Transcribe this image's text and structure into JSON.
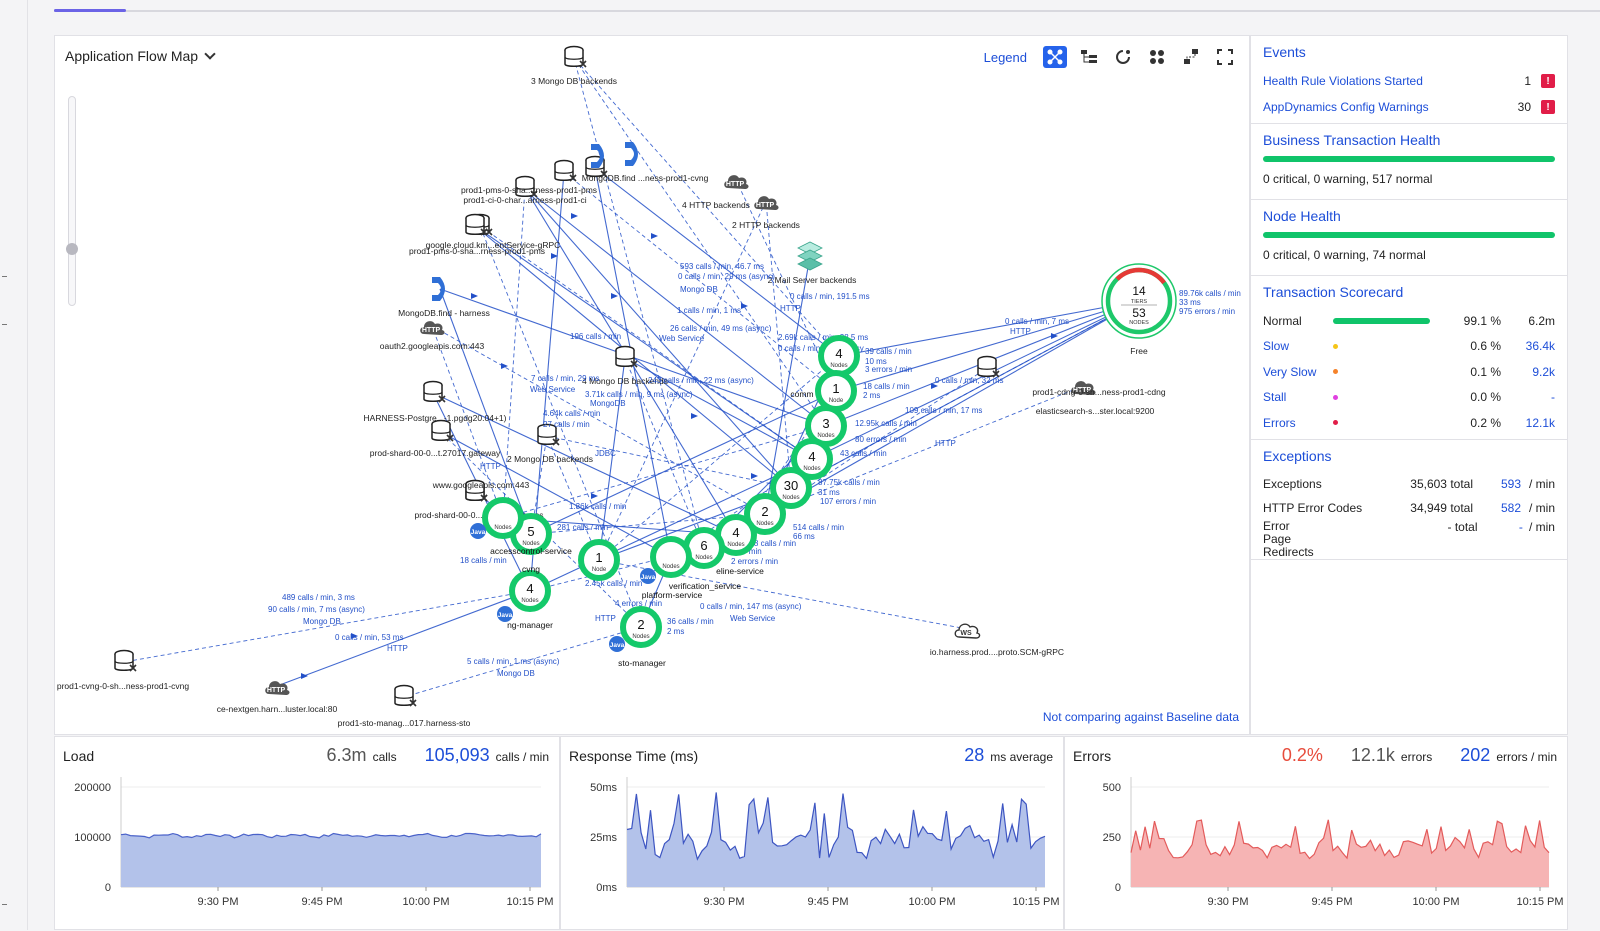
{
  "flow_map": {
    "title": "Application Flow Map",
    "legend_label": "Legend",
    "baseline_note": "Not comparing against Baseline data",
    "summary": {
      "tiers_count": "14",
      "tiers_label": "TIERS",
      "nodes_count": "53",
      "nodes_label": "NODES",
      "free_label": "Free"
    },
    "summary_stats": [
      "89.76k calls / min",
      "33 ms",
      "975 errors / min"
    ],
    "backend_labels": [
      "3 Mongo DB backends",
      "MongoDB.find ...ness-prod1-cvng",
      "prod1-pms-0-sha...rness-prod1-pms",
      "prod1-ci-0-char...arness-prod1-ci",
      "google.cloud.km...entService-gRPC",
      "prod1-pms-0-sha...rness-prod1-pms",
      "4 HTTP backends",
      "2 HTTP backends",
      "2 Mail Server backends",
      "MongoDB.find - harness",
      "oauth2.googleapis.com:443",
      "HARNESS-Postgre...-1.pgdg20.04+1)",
      "prod-shard-00-0...t.27017.gateway",
      "4 Mongo DB backends",
      "2 Mongo DB backends",
      "www.googleapis.com:443",
      "prod-shard-00-0...t.27017.harness",
      "prod1-cdng-0-sh...ness-prod1-cdng",
      "elasticsearch-s...ster.local:9200",
      "io.harness.prod....proto.SCM-gRPC",
      "prod1-cvng-0-sh...ness-prod1-cvng",
      "ce-nextgen.harn...luster.local:80",
      "prod1-sto-manag...017.harness-sto"
    ],
    "tier_nodes": [
      {
        "count": "4",
        "sub": "Nodes"
      },
      {
        "count": "1",
        "sub": "Node"
      },
      {
        "count": "3",
        "sub": "Nodes"
      },
      {
        "count": "4",
        "sub": "Nodes"
      },
      {
        "count": "30",
        "sub": "Nodes"
      },
      {
        "count": "2",
        "sub": "Nodes"
      },
      {
        "count": "4",
        "sub": "Nodes"
      },
      {
        "count": "6",
        "sub": "Nodes"
      },
      {
        "count": "",
        "sub": "Nodes"
      },
      {
        "count": "1",
        "sub": "Node"
      },
      {
        "count": "5",
        "sub": "Nodes"
      },
      {
        "count": "",
        "sub": "Nodes"
      },
      {
        "count": "4",
        "sub": "Nodes"
      },
      {
        "count": "2",
        "sub": "Nodes"
      }
    ],
    "tier_labels": [
      "accesscontrol-service",
      "cvng",
      "ng-manager",
      "platform-service",
      "verification_service",
      "eline-service",
      "sto-manager",
      "comm"
    ],
    "edge_labels": [
      "593 calls / min, 46.7 ms",
      "0 calls / min, 29 ms (async)",
      "Mongo DB",
      "0 calls / min, 191.5 ms",
      "HTTP",
      "1 calls / min, 1 ms",
      "26 calls / min, 49 ms (async)",
      "Web Service",
      "196 calls / min",
      "2.69k calls / min, 38.5 ms",
      "0 calls / min, 50 ms (asy",
      "7 calls / min, 29 ms",
      "243 calls / min, 22 ms (async)",
      "Web Service",
      "3.71k calls / min, 9 ms (async)",
      "MongoDB",
      "27 calls / min",
      "4.64k calls / min",
      "39 calls / min",
      "10 ms",
      "3 errors / min",
      "18 calls / min",
      "2 ms",
      "0 calls / min, 32 ms",
      "109 calls / min, 17 ms",
      "12.95k calls / min",
      "80 errors / min",
      "HTTP",
      "0 calls / min, 7 ms",
      "HTTP",
      "43 calls / min",
      "87.75k calls / min",
      "31 ms",
      "107 errors / min",
      "514 calls / min",
      "66 ms",
      "888 calls / min",
      "30 calls / min",
      "2 errors / min",
      "281 calls / min",
      "2.45k calls / min",
      "4 errors / min",
      "HTTP",
      "489 calls / min, 3 ms",
      "90 calls / min, 7 ms (async)",
      "Mongo DB",
      "0 calls / min, 53 ms",
      "HTTP",
      "5 calls / min, 1 ms (async)",
      "Mongo DB",
      "36 calls / min",
      "2 ms",
      "0 calls / min, 147 ms (async)",
      "Web Service",
      "18 calls / min",
      "1.36k calls / min",
      "JDBC",
      "HTTP"
    ]
  },
  "events": {
    "title": "Events",
    "items": [
      {
        "label": "Health Rule Violations Started",
        "count": "1",
        "badge": "!"
      },
      {
        "label": "AppDynamics Config Warnings",
        "count": "30",
        "badge": "!"
      }
    ]
  },
  "bt_health": {
    "title": "Business Transaction Health",
    "summary": "0 critical, 0 warning, 517 normal",
    "normal_fraction": 1.0
  },
  "node_health": {
    "title": "Node Health",
    "summary": "0 critical, 0 warning, 74 normal",
    "normal_fraction": 1.0
  },
  "scorecard": {
    "title": "Transaction Scorecard",
    "rows": [
      {
        "name": "Normal",
        "pct": "99.1 %",
        "value": "6.2m",
        "color": "#10c46a",
        "link": false
      },
      {
        "name": "Slow",
        "pct": "0.6 %",
        "value": "36.4k",
        "color": "#f5c518",
        "link": true
      },
      {
        "name": "Very Slow",
        "pct": "0.1 %",
        "value": "9.2k",
        "color": "#f5822a",
        "link": true
      },
      {
        "name": "Stall",
        "pct": "0.0 %",
        "value": "-",
        "color": "#e040e0",
        "link": true
      },
      {
        "name": "Errors",
        "pct": "0.2 %",
        "value": "12.1k",
        "color": "#e11d48",
        "link": true
      }
    ]
  },
  "exceptions": {
    "title": "Exceptions",
    "rows": [
      {
        "name": "Exceptions",
        "total": "35,603 total",
        "rate": "593",
        "unit": "/ min"
      },
      {
        "name": "HTTP Error Codes",
        "total": "34,949 total",
        "rate": "582",
        "unit": "/ min"
      },
      {
        "name": "Error Page Redirects",
        "total": "- total",
        "rate": "-",
        "unit": "/ min"
      }
    ]
  },
  "load": {
    "title": "Load",
    "total": "6.3m",
    "total_unit": "calls",
    "rate": "105,093",
    "rate_unit": "calls / min",
    "y_ticks": [
      "200000",
      "100000",
      "0"
    ],
    "x_ticks": [
      "9:30 PM",
      "9:45 PM",
      "10:00 PM",
      "10:15 PM"
    ]
  },
  "response": {
    "title": "Response Time (ms)",
    "avg": "28",
    "avg_unit": "ms average",
    "y_ticks": [
      "50ms",
      "25ms",
      "0ms"
    ],
    "x_ticks": [
      "9:30 PM",
      "9:45 PM",
      "10:00 PM",
      "10:15 PM"
    ]
  },
  "errors": {
    "title": "Errors",
    "pct": "0.2%",
    "total": "12.1k",
    "total_unit": "errors",
    "rate": "202",
    "rate_unit": "errors / min",
    "y_ticks": [
      "500",
      "250",
      "0"
    ],
    "x_ticks": [
      "9:30 PM",
      "9:45 PM",
      "10:00 PM",
      "10:15 PM"
    ]
  },
  "colors": {
    "accent": "#1d4ed8",
    "healthy": "#10c46a",
    "error": "#e11d48",
    "load_fill": "#b3c2ea",
    "error_fill": "#f6b4b4"
  },
  "icons": [
    "chevron-down-icon",
    "flow-layout-icon",
    "tree-layout-icon",
    "refresh-icon",
    "cluster-icon",
    "arrange-icon",
    "fullscreen-icon",
    "database-icon",
    "http-cloud-icon",
    "mongodb-icon",
    "mail-server-icon",
    "webservice-icon",
    "java-icon",
    "error-badge-icon"
  ]
}
